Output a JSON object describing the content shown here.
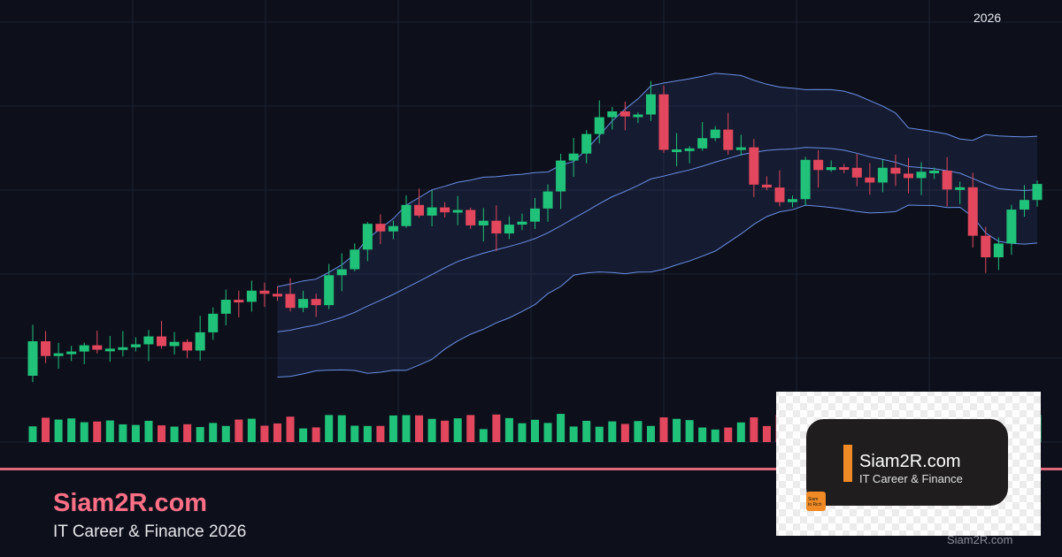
{
  "header": {
    "year": "2026"
  },
  "brand": {
    "name": "Siam2R.com",
    "tagline": "IT Career & Finance 2026"
  },
  "logo": {
    "name": "Siam2R.com",
    "tagline": "IT Career & Finance",
    "badge": [
      "Siam",
      "to Rich"
    ]
  },
  "watermark": "Siam2R.com"
}
